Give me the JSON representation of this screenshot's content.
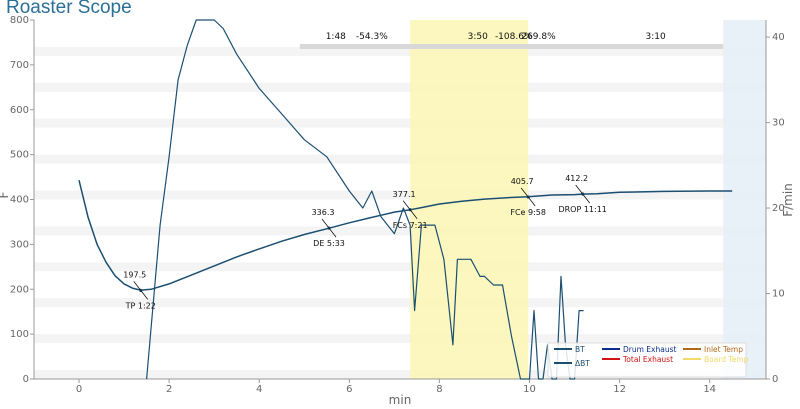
{
  "app_title": "Roaster Scope",
  "colors": {
    "bt": "#1b4f72",
    "drum": "#0b2e8a",
    "total": "#d01414",
    "inlet": "#b06a1a",
    "board": "#f3d96b",
    "phase_band": "#fbf6b8",
    "after_band": "#e6eef7"
  },
  "chart_data": {
    "type": "line",
    "title": "",
    "xlabel": "min",
    "ylabel": "F",
    "y2label": "F/min",
    "xlim": [
      -1,
      15.25
    ],
    "ylim": [
      0,
      800
    ],
    "y2lim": [
      0,
      42
    ],
    "xticks": [
      0,
      2,
      4,
      6,
      8,
      10,
      12,
      14
    ],
    "yticks": [
      0,
      100,
      200,
      300,
      400,
      500,
      600,
      700,
      800
    ],
    "y2ticks": [
      0,
      10,
      20,
      30,
      40
    ],
    "grid": true,
    "legend_position": "bottom-right",
    "legend": [
      "BT",
      "ΔBT",
      "Drum Exhaust",
      "Total Exhaust",
      "Inlet Temp",
      "Board Temp"
    ],
    "series": [
      {
        "name": "BT",
        "axis": "left",
        "x": [
          0,
          0.2,
          0.4,
          0.6,
          0.8,
          1.0,
          1.2,
          1.37,
          1.6,
          2.0,
          2.5,
          3.0,
          3.5,
          4.0,
          4.5,
          5.0,
          5.55,
          6.0,
          6.5,
          7.0,
          7.35,
          7.6,
          8.0,
          8.5,
          9.0,
          9.5,
          9.97,
          10.5,
          11.0,
          11.18,
          11.5,
          12.0,
          13.0,
          14.0,
          14.5
        ],
        "y": [
          443,
          360,
          300,
          260,
          230,
          212,
          202,
          198,
          200,
          212,
          232,
          252,
          272,
          290,
          307,
          322,
          336,
          348,
          360,
          372,
          377,
          382,
          390,
          396,
          401,
          404,
          406,
          410,
          411,
          412,
          413,
          416,
          418,
          419,
          419
        ]
      },
      {
        "name": "ΔBT",
        "axis": "right",
        "x": [
          1.5,
          1.8,
          2.0,
          2.2,
          2.4,
          2.6,
          2.8,
          3.0,
          3.2,
          3.5,
          4.0,
          4.5,
          5.0,
          5.5,
          6.0,
          6.3,
          6.5,
          6.7,
          7.0,
          7.2,
          7.35,
          7.45,
          7.6,
          7.75,
          7.9,
          8.1,
          8.3,
          8.4,
          8.5,
          8.6,
          8.7,
          8.8,
          8.9,
          9.0,
          9.2,
          9.4,
          9.6,
          9.8,
          9.9,
          10.0,
          10.1,
          10.2,
          10.3,
          10.4,
          10.5,
          10.6,
          10.7,
          10.8,
          10.9,
          11.0,
          11.1,
          11.2
        ],
        "y": [
          0,
          18,
          26,
          35,
          39,
          42,
          42,
          42,
          41,
          38,
          34,
          31,
          28,
          26,
          22,
          20,
          22,
          19,
          17,
          20,
          18,
          8,
          18,
          18,
          18,
          14,
          4,
          14,
          14,
          14,
          14,
          13,
          12,
          12,
          11,
          11,
          5,
          0,
          0,
          0,
          8,
          0,
          0,
          4,
          0,
          0,
          12,
          4,
          0,
          0,
          8,
          8
        ]
      }
    ],
    "phase_regions": [
      {
        "from": 7.35,
        "to": 9.97,
        "kind": "development"
      },
      {
        "from": 14.3,
        "to": 15.25,
        "kind": "after-drop"
      }
    ],
    "annotations": [
      {
        "x": 1.37,
        "y": 197.5,
        "value": "197.5",
        "label": "TP 1:22"
      },
      {
        "x": 5.55,
        "y": 336.3,
        "value": "336.3",
        "label": "DE 5:33"
      },
      {
        "x": 7.35,
        "y": 377.1,
        "value": "377.1",
        "label": "FCs 7:21"
      },
      {
        "x": 9.97,
        "y": 405.7,
        "value": "405.7",
        "label": "FCe 9:58"
      },
      {
        "x": 11.18,
        "y": 412.2,
        "value": "412.2",
        "label": "DROP 11:11"
      }
    ],
    "phase_bar": [
      {
        "time": "1:48",
        "pct": "-54.3%"
      },
      {
        "time": "3:50",
        "pct": "-108.6%"
      },
      {
        "time": "",
        "pct": "269.8%"
      },
      {
        "time": "3:10",
        "pct": ""
      }
    ]
  }
}
